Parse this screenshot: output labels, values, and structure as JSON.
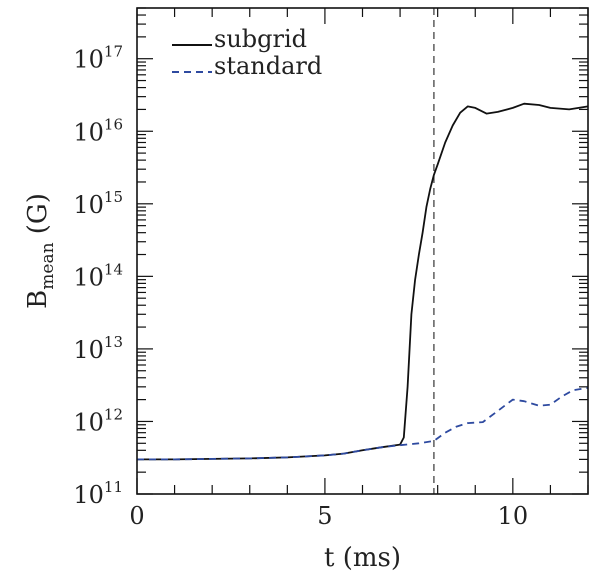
{
  "chart_data": {
    "type": "line",
    "title": "",
    "xlabel": "t  (ms)",
    "ylabel": {
      "base": "B",
      "subscript": "mean",
      "unit": "  (G)"
    },
    "x_scale": "linear",
    "y_scale": "log",
    "xlim": [
      0,
      12
    ],
    "ylim": [
      100000000000.0,
      5e+17
    ],
    "x_ticks": [
      {
        "value": 0,
        "label": "0"
      },
      {
        "value": 5,
        "label": "5"
      },
      {
        "value": 10,
        "label": "10"
      }
    ],
    "y_ticks": [
      {
        "value": 100000000000.0,
        "base": "10",
        "exp": "11"
      },
      {
        "value": 1000000000000.0,
        "base": "10",
        "exp": "12"
      },
      {
        "value": 10000000000000.0,
        "base": "10",
        "exp": "13"
      },
      {
        "value": 100000000000000.0,
        "base": "10",
        "exp": "14"
      },
      {
        "value": 1000000000000000.0,
        "base": "10",
        "exp": "15"
      },
      {
        "value": 1e+16,
        "base": "10",
        "exp": "16"
      },
      {
        "value": 1e+17,
        "base": "10",
        "exp": "17"
      }
    ],
    "vertical_line_x": 7.9,
    "legend_position": "top-left",
    "series": [
      {
        "name": "subgrid",
        "color": "#111111",
        "dash": "solid",
        "x": [
          0,
          1,
          2,
          3,
          4,
          5,
          5.5,
          6,
          6.5,
          7.0,
          7.1,
          7.2,
          7.3,
          7.4,
          7.5,
          7.6,
          7.7,
          7.8,
          7.9,
          8.0,
          8.2,
          8.4,
          8.6,
          8.8,
          9.0,
          9.3,
          9.6,
          10.0,
          10.3,
          10.7,
          11.0,
          11.5,
          12.0
        ],
        "y": [
          300000000000.0,
          300000000000.0,
          305000000000.0,
          310000000000.0,
          320000000000.0,
          340000000000.0,
          360000000000.0,
          400000000000.0,
          440000000000.0,
          480000000000.0,
          600000000000.0,
          3000000000000.0,
          30000000000000.0,
          90000000000000.0,
          200000000000000.0,
          400000000000000.0,
          900000000000000.0,
          1600000000000000.0,
          2500000000000000.0,
          3500000000000000.0,
          7000000000000000.0,
          1.2e+16,
          1.8e+16,
          2.2e+16,
          2.1e+16,
          1.75e+16,
          1.85e+16,
          2.1e+16,
          2.4e+16,
          2.3e+16,
          2.1e+16,
          2e+16,
          2.2e+16
        ]
      },
      {
        "name": "standard",
        "color": "#2e4aa0",
        "dash": "dashed",
        "x": [
          0,
          1,
          2,
          3,
          4,
          5,
          5.5,
          6,
          6.5,
          7.0,
          7.5,
          7.9,
          8.2,
          8.5,
          8.8,
          9.2,
          9.6,
          10.0,
          10.3,
          10.7,
          11.0,
          11.3,
          11.6,
          12.0
        ],
        "y": [
          300000000000.0,
          300000000000.0,
          305000000000.0,
          310000000000.0,
          320000000000.0,
          340000000000.0,
          360000000000.0,
          400000000000.0,
          440000000000.0,
          470000000000.0,
          500000000000.0,
          540000000000.0,
          700000000000.0,
          850000000000.0,
          950000000000.0,
          980000000000.0,
          1400000000000.0,
          2000000000000.0,
          1900000000000.0,
          1650000000000.0,
          1700000000000.0,
          2200000000000.0,
          2700000000000.0,
          2900000000000.0
        ]
      }
    ]
  }
}
